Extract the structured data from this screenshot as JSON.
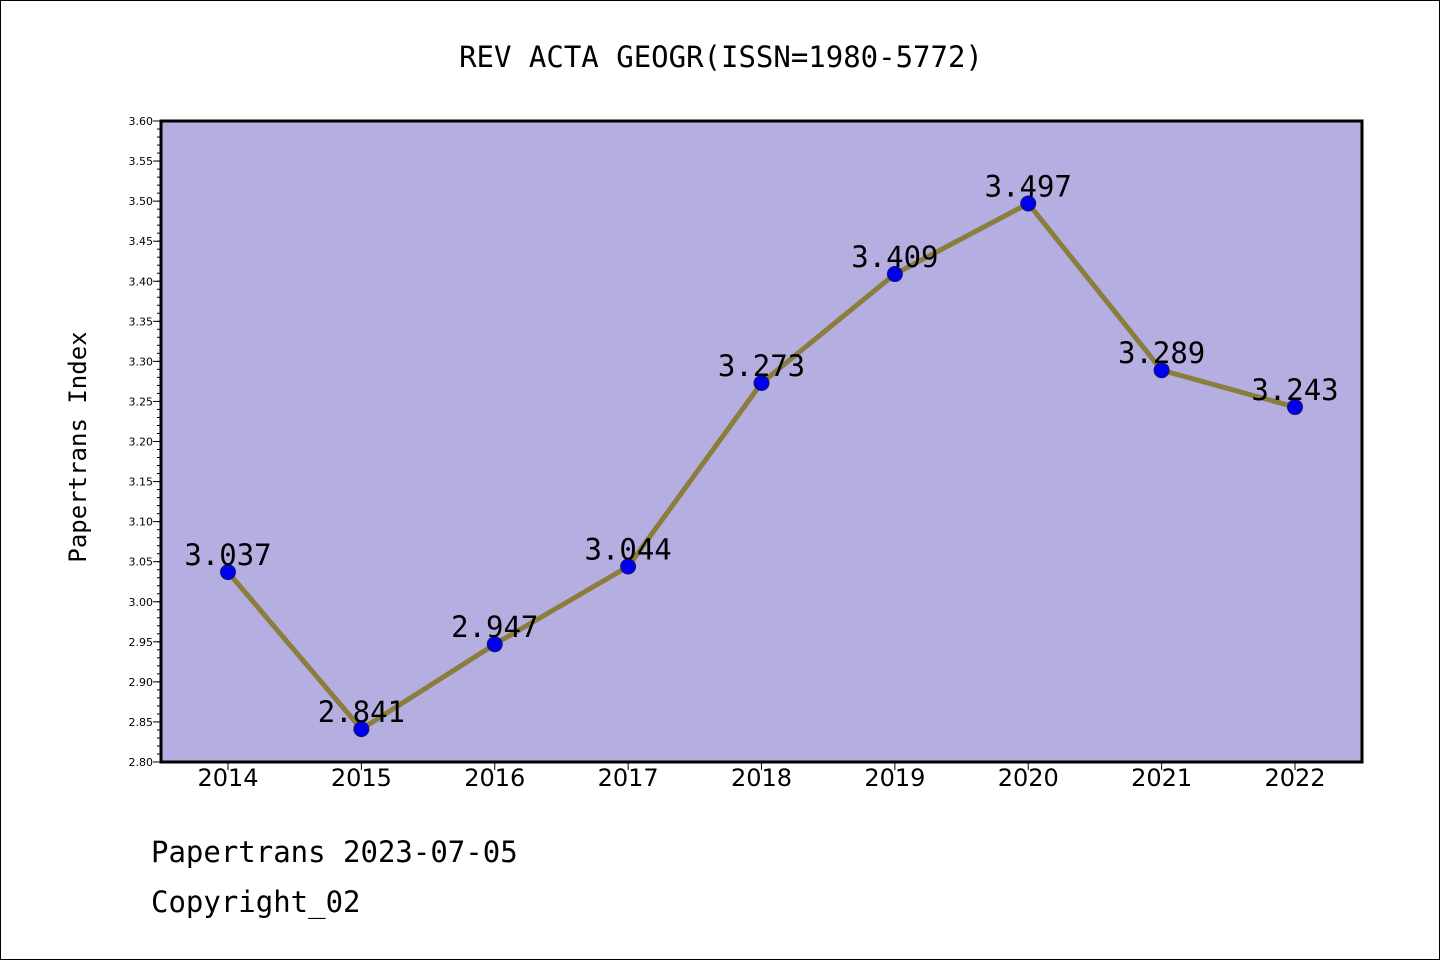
{
  "chart_data": {
    "type": "line",
    "title": "REV ACTA GEOGR(ISSN=1980-5772)",
    "xlabel": "",
    "ylabel": "Papertrans Index",
    "categories": [
      "2014",
      "2015",
      "2016",
      "2017",
      "2018",
      "2019",
      "2020",
      "2021",
      "2022"
    ],
    "series": [
      {
        "values": [
          3.037,
          2.841,
          2.947,
          3.044,
          3.273,
          3.409,
          3.497,
          3.289,
          3.243
        ],
        "labels": [
          "3.037",
          "2.841",
          "2.947",
          "3.044",
          "3.273",
          "3.409",
          "3.497",
          "3.289",
          "3.243"
        ]
      }
    ],
    "ylim": [
      2.8,
      3.6
    ],
    "yticks": [
      "2.80",
      "2.85",
      "2.90",
      "2.95",
      "3.00",
      "3.05",
      "3.10",
      "3.15",
      "3.20",
      "3.25",
      "3.30",
      "3.35",
      "3.40",
      "3.45",
      "3.50",
      "3.55",
      "3.60"
    ],
    "grid": false,
    "legend": "none"
  },
  "colors": {
    "plot_background": "#b4aee1",
    "line": "#8b7d3c",
    "marker_fill": "#0000ee",
    "marker_edge": "#1a1a60"
  },
  "footer": {
    "date_line": "Papertrans 2023-07-05",
    "copyright": "Copyright_02"
  }
}
